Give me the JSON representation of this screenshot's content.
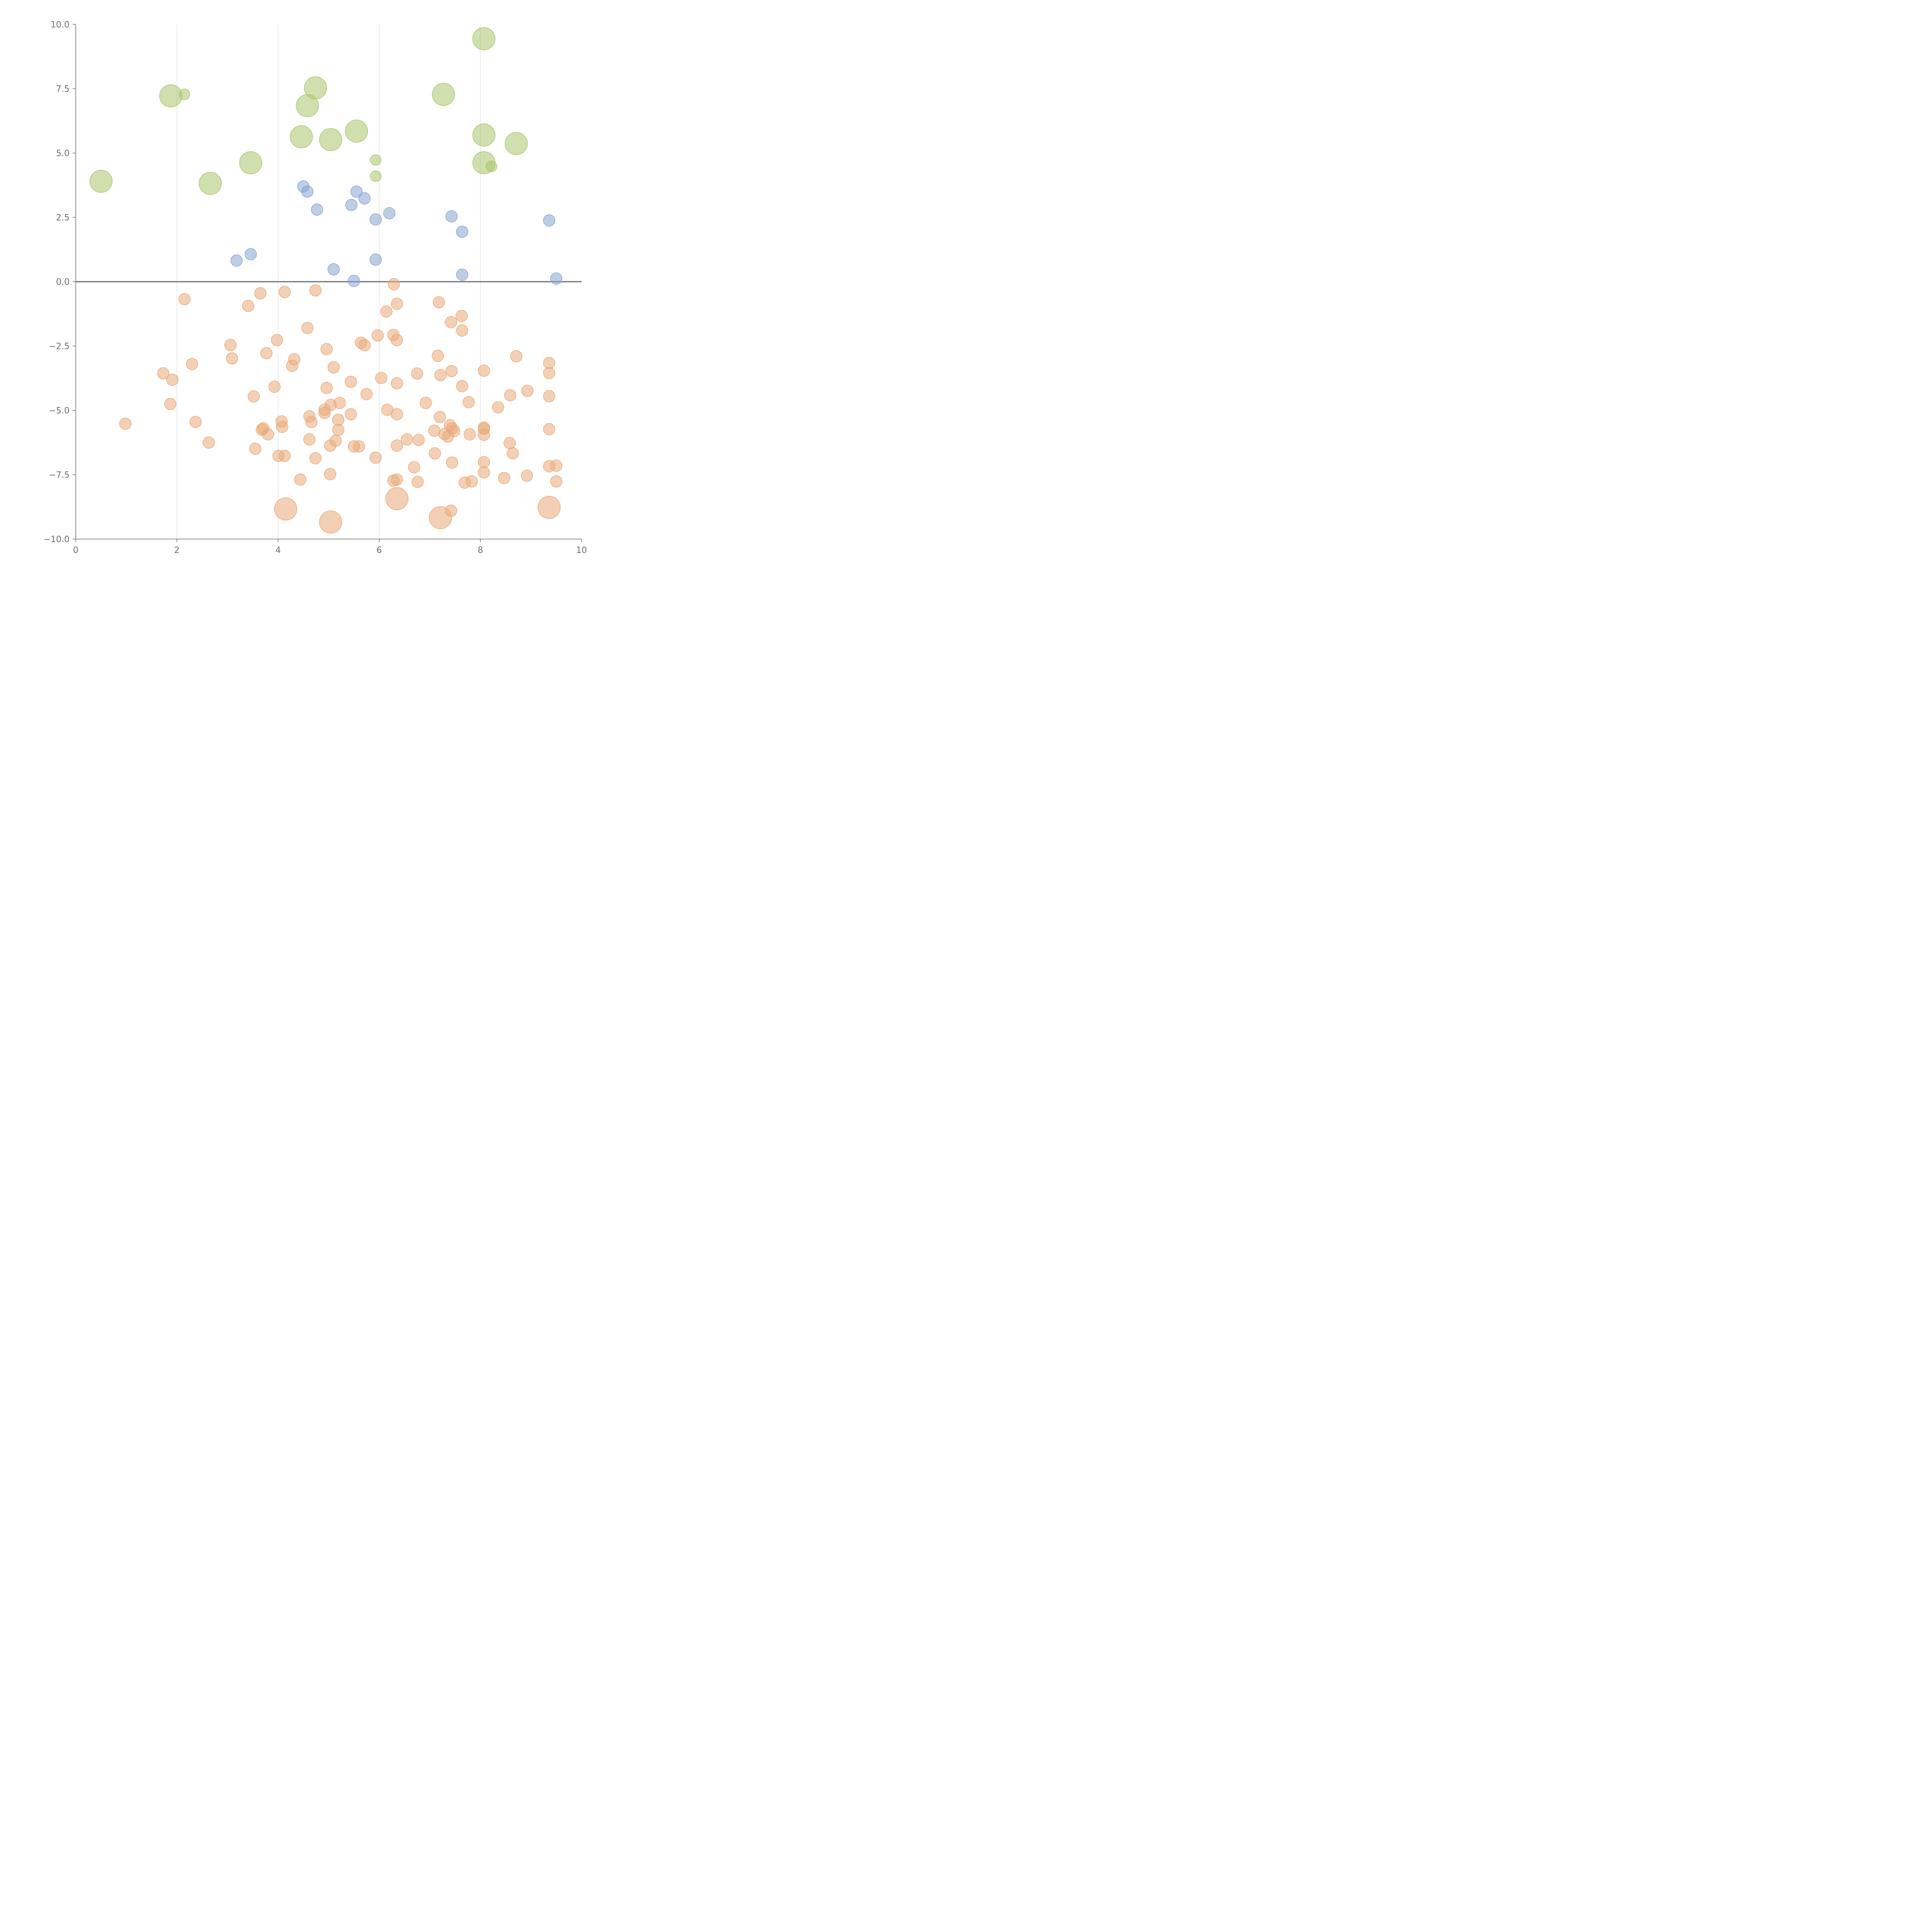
{
  "chart_data": {
    "type": "scatter",
    "title": "",
    "xlabel": "",
    "ylabel": "",
    "xlim": [
      0,
      10
    ],
    "ylim": [
      -10,
      10
    ],
    "x_ticks": [
      0,
      2,
      4,
      6,
      8,
      10
    ],
    "x_tick_labels": [
      "0",
      "2",
      "4",
      "6",
      "8",
      "10"
    ],
    "y_ticks": [
      10,
      7.5,
      5,
      2.5,
      0,
      -2.5,
      -5,
      -7.5,
      -10
    ],
    "y_tick_labels": [
      "10.0",
      "7.5",
      "5.0",
      "2.5",
      "0.0",
      "−2.5",
      "−5.0",
      "−7.5",
      "−10.0"
    ],
    "vertical_grid": true,
    "horizontal_grid": false,
    "reference_line_y": 0,
    "legend": "none",
    "series": [
      {
        "color": "#a9c46c",
        "size": "large",
        "points": [
          [
            0.5,
            3.9
          ],
          [
            1.88,
            7.22
          ],
          [
            2.15,
            7.28
          ],
          [
            2.66,
            3.82
          ],
          [
            3.46,
            4.62
          ],
          [
            4.46,
            5.63
          ],
          [
            4.58,
            6.84
          ],
          [
            4.74,
            7.53
          ],
          [
            5.04,
            5.52
          ],
          [
            5.55,
            5.85
          ],
          [
            5.93,
            4.73
          ],
          [
            5.93,
            4.1
          ],
          [
            7.27,
            7.28
          ],
          [
            8.07,
            9.44
          ],
          [
            8.07,
            5.7
          ],
          [
            8.07,
            4.62
          ],
          [
            8.22,
            4.48
          ],
          [
            8.71,
            5.37
          ]
        ],
        "point_sizes": [
          2,
          2,
          1,
          2,
          2,
          2,
          2,
          2,
          2,
          2,
          1,
          1,
          2,
          2,
          2,
          2,
          1,
          2
        ]
      },
      {
        "color": "#86a4d1",
        "size": "small",
        "points": [
          [
            3.18,
            0.82
          ],
          [
            3.46,
            1.07
          ],
          [
            4.5,
            3.7
          ],
          [
            4.58,
            3.5
          ],
          [
            4.77,
            2.8
          ],
          [
            5.1,
            0.48
          ],
          [
            5.45,
            2.98
          ],
          [
            5.5,
            0.03
          ],
          [
            5.55,
            3.5
          ],
          [
            5.71,
            3.24
          ],
          [
            5.93,
            2.42
          ],
          [
            5.93,
            0.86
          ],
          [
            6.2,
            2.66
          ],
          [
            7.43,
            2.54
          ],
          [
            7.64,
            1.94
          ],
          [
            7.64,
            0.27
          ],
          [
            9.36,
            2.38
          ],
          [
            9.5,
            0.12
          ]
        ]
      },
      {
        "color": "#e9a978",
        "size": "small",
        "points": [
          [
            0.98,
            -5.52
          ],
          [
            1.73,
            -3.56
          ],
          [
            1.87,
            -4.75
          ],
          [
            1.91,
            -3.81
          ],
          [
            2.15,
            -0.68
          ],
          [
            2.3,
            -3.2
          ],
          [
            2.37,
            -5.45
          ],
          [
            2.63,
            -6.25
          ],
          [
            3.06,
            -2.46
          ],
          [
            3.09,
            -2.98
          ],
          [
            3.41,
            -0.94
          ],
          [
            3.52,
            -4.46
          ],
          [
            3.55,
            -6.49
          ],
          [
            3.65,
            -0.45
          ],
          [
            3.68,
            -5.75
          ],
          [
            3.71,
            -5.7
          ],
          [
            3.77,
            -2.78
          ],
          [
            3.8,
            -5.93
          ],
          [
            3.93,
            -4.08
          ],
          [
            3.98,
            -2.27
          ],
          [
            4.01,
            -6.77
          ],
          [
            4.07,
            -5.43
          ],
          [
            4.08,
            -5.64
          ],
          [
            4.13,
            -0.4
          ],
          [
            4.13,
            -6.77
          ],
          [
            4.28,
            -3.27
          ],
          [
            4.32,
            -3.02
          ],
          [
            4.44,
            -7.69
          ],
          [
            4.58,
            -1.8
          ],
          [
            4.62,
            -5.23
          ],
          [
            4.62,
            -6.13
          ],
          [
            4.66,
            -5.45
          ],
          [
            4.74,
            -0.34
          ],
          [
            4.74,
            -6.86
          ],
          [
            4.92,
            -4.98
          ],
          [
            4.92,
            -5.1
          ],
          [
            4.96,
            -2.62
          ],
          [
            4.96,
            -4.13
          ],
          [
            5.04,
            -4.79
          ],
          [
            5.03,
            -6.37
          ],
          [
            5.03,
            -7.48
          ],
          [
            5.1,
            -3.33
          ],
          [
            5.14,
            -6.18
          ],
          [
            5.19,
            -5.37
          ],
          [
            5.19,
            -5.76
          ],
          [
            5.22,
            -4.71
          ],
          [
            5.44,
            -3.89
          ],
          [
            5.44,
            -5.15
          ],
          [
            5.5,
            -6.4
          ],
          [
            5.6,
            -6.4
          ],
          [
            5.64,
            -2.37
          ],
          [
            5.71,
            -2.47
          ],
          [
            5.75,
            -4.37
          ],
          [
            5.93,
            -6.84
          ],
          [
            5.97,
            -2.09
          ],
          [
            6.04,
            -3.74
          ],
          [
            6.14,
            -1.16
          ],
          [
            6.16,
            -4.98
          ],
          [
            6.28,
            -2.07
          ],
          [
            6.28,
            -7.73
          ],
          [
            6.29,
            -0.1
          ],
          [
            6.35,
            -0.86
          ],
          [
            6.35,
            -2.27
          ],
          [
            6.35,
            -3.95
          ],
          [
            6.35,
            -5.15
          ],
          [
            6.35,
            -6.37
          ],
          [
            6.35,
            -7.69
          ],
          [
            6.55,
            -6.13
          ],
          [
            6.69,
            -7.21
          ],
          [
            6.75,
            -3.57
          ],
          [
            6.78,
            -6.15
          ],
          [
            6.76,
            -7.78
          ],
          [
            6.92,
            -4.71
          ],
          [
            7.09,
            -5.79
          ],
          [
            7.1,
            -6.67
          ],
          [
            7.16,
            -2.88
          ],
          [
            7.18,
            -0.8
          ],
          [
            7.2,
            -5.26
          ],
          [
            7.21,
            -3.63
          ],
          [
            7.29,
            -5.92
          ],
          [
            7.36,
            -6.02
          ],
          [
            7.4,
            -5.58
          ],
          [
            7.42,
            -1.57
          ],
          [
            7.43,
            -3.47
          ],
          [
            7.44,
            -5.7
          ],
          [
            7.44,
            -7.03
          ],
          [
            7.48,
            -5.8
          ],
          [
            7.42,
            -8.9
          ],
          [
            7.63,
            -1.33
          ],
          [
            7.64,
            -1.9
          ],
          [
            7.64,
            -4.06
          ],
          [
            7.69,
            -7.81
          ],
          [
            7.77,
            -4.68
          ],
          [
            7.79,
            -5.93
          ],
          [
            7.83,
            -7.76
          ],
          [
            8.07,
            -3.46
          ],
          [
            8.07,
            -5.67
          ],
          [
            8.07,
            -5.72
          ],
          [
            8.07,
            -5.95
          ],
          [
            8.07,
            -7.01
          ],
          [
            8.07,
            -7.41
          ],
          [
            8.35,
            -4.88
          ],
          [
            8.47,
            -7.63
          ],
          [
            8.59,
            -4.41
          ],
          [
            8.58,
            -6.27
          ],
          [
            8.64,
            -6.67
          ],
          [
            8.71,
            -2.9
          ],
          [
            8.92,
            -7.54
          ],
          [
            8.93,
            -4.24
          ],
          [
            9.36,
            -3.16
          ],
          [
            9.36,
            -3.55
          ],
          [
            9.36,
            -4.45
          ],
          [
            9.36,
            -5.73
          ],
          [
            9.36,
            -7.17
          ],
          [
            9.5,
            -7.15
          ],
          [
            9.5,
            -7.76
          ]
        ]
      },
      {
        "color": "#e9a978",
        "size": "large",
        "points": [
          [
            4.15,
            -8.83
          ],
          [
            5.04,
            -9.34
          ],
          [
            6.35,
            -8.43
          ],
          [
            7.21,
            -9.17
          ],
          [
            9.36,
            -8.77
          ]
        ]
      }
    ]
  }
}
